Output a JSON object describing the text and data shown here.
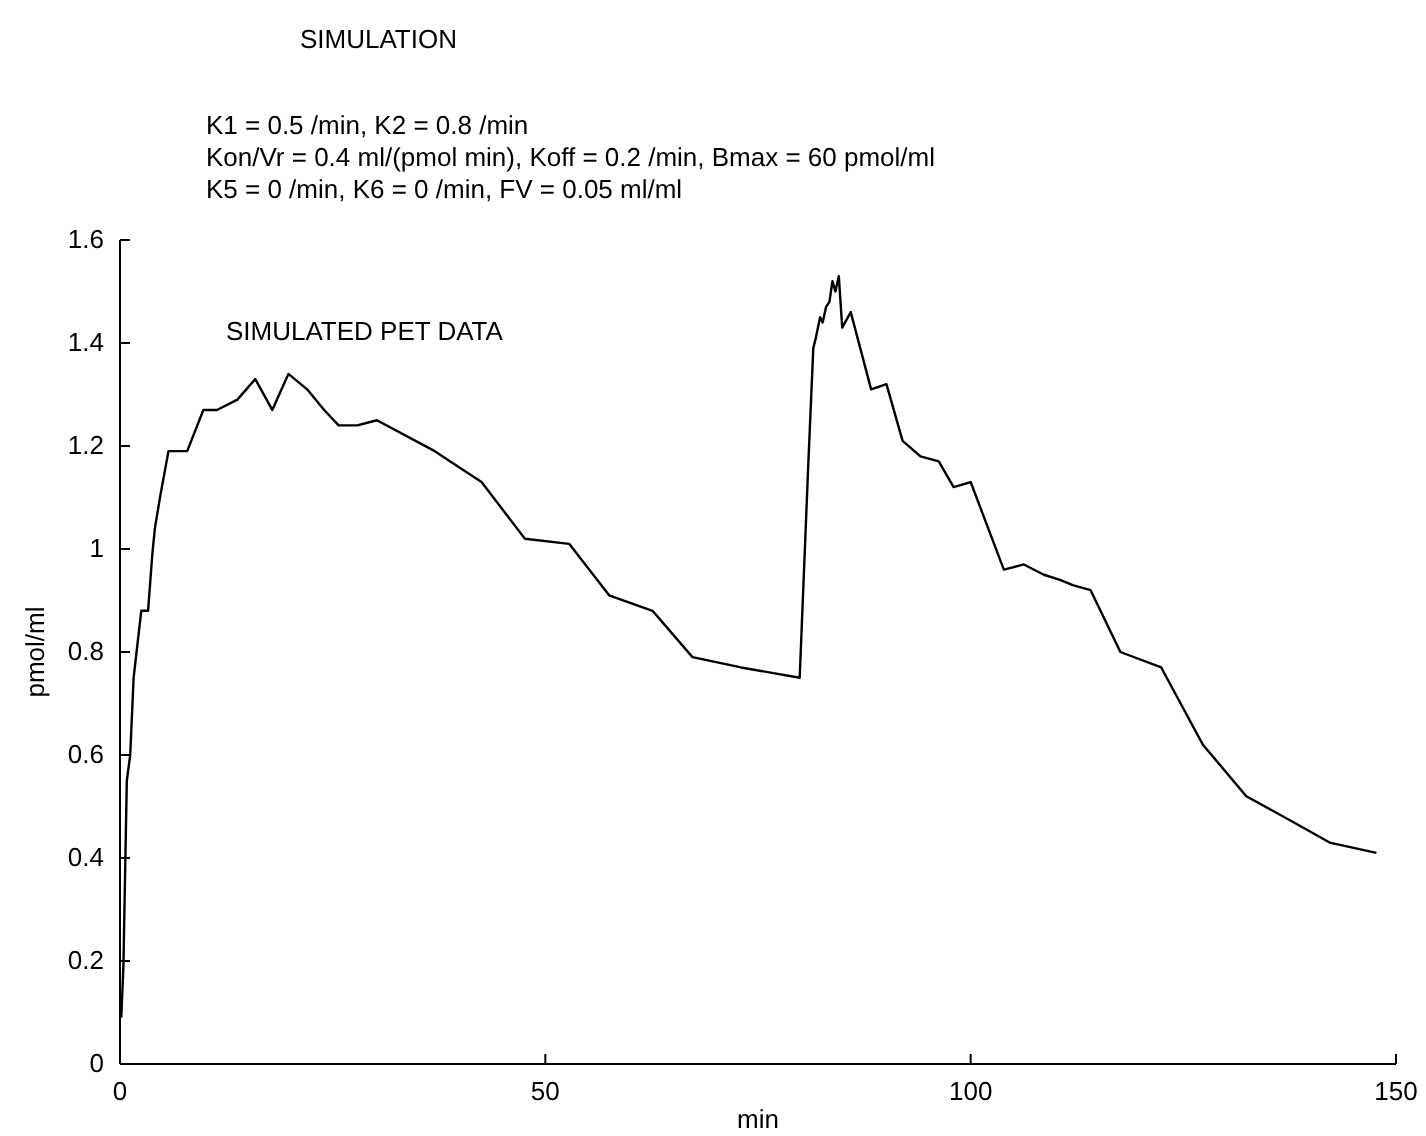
{
  "chart_data": {
    "type": "line",
    "title": "SIMULATION",
    "annotations": [
      "K1 =  0.5 /min,    K2 = 0.8 /min",
      "Kon/Vr =  0.4 ml/(pmol min),    Koff = 0.2 /min,   Bmax = 60 pmol/ml",
      "K5 =  0 /min,    K6 = 0 /min,    FV = 0.05 ml/ml"
    ],
    "xlabel": "min",
    "ylabel": "pmol/ml",
    "xlim": [
      0,
      150
    ],
    "xticks": [
      0,
      50,
      100,
      150
    ],
    "ylim": [
      0,
      1.6
    ],
    "yticks": [
      0,
      0.2,
      0.4,
      0.6,
      0.8,
      1,
      1.2,
      1.4,
      1.6
    ],
    "grid": false,
    "marker": "none",
    "line_style": "solid",
    "series": [
      {
        "name": "SIMULATED PET DATA",
        "color": "#000000",
        "x": [
          0.15,
          0.4,
          0.8,
          1.2,
          1.6,
          2.5,
          3.3,
          3.8,
          4.1,
          4.7,
          5.7,
          6.9,
          7.9,
          9.8,
          11.4,
          13.8,
          15.9,
          17.9,
          19.8,
          22,
          24,
          25.7,
          27.9,
          30.2,
          37,
          42.5,
          47.6,
          52.8,
          57.5,
          62.6,
          67.3,
          73,
          79.9,
          80.9,
          81.5,
          81.8,
          82.3,
          82.6,
          83,
          83.4,
          83.75,
          84.1,
          84.5,
          84.9,
          85.9,
          88.3,
          90.1,
          92,
          94.1,
          96.25,
          98,
          100,
          103.9,
          106.25,
          108.6,
          110.5,
          112,
          114.1,
          117.6,
          122.4,
          127.3,
          132.4,
          137.9,
          142.2,
          147.7
        ],
        "values": [
          0.09,
          0.19,
          0.55,
          0.6,
          0.75,
          0.88,
          0.88,
          0.99,
          1.04,
          1.1,
          1.19,
          1.19,
          1.19,
          1.27,
          1.27,
          1.29,
          1.33,
          1.27,
          1.34,
          1.31,
          1.27,
          1.24,
          1.24,
          1.25,
          1.19,
          1.13,
          1.02,
          1.01,
          0.91,
          0.88,
          0.79,
          0.77,
          0.75,
          1.16,
          1.39,
          1.41,
          1.45,
          1.44,
          1.47,
          1.48,
          1.52,
          1.5,
          1.53,
          1.43,
          1.46,
          1.31,
          1.32,
          1.21,
          1.18,
          1.17,
          1.12,
          1.13,
          0.96,
          0.97,
          0.95,
          0.94,
          0.93,
          0.92,
          0.8,
          0.77,
          0.62,
          0.52,
          0.47,
          0.43,
          0.41
        ]
      }
    ]
  }
}
